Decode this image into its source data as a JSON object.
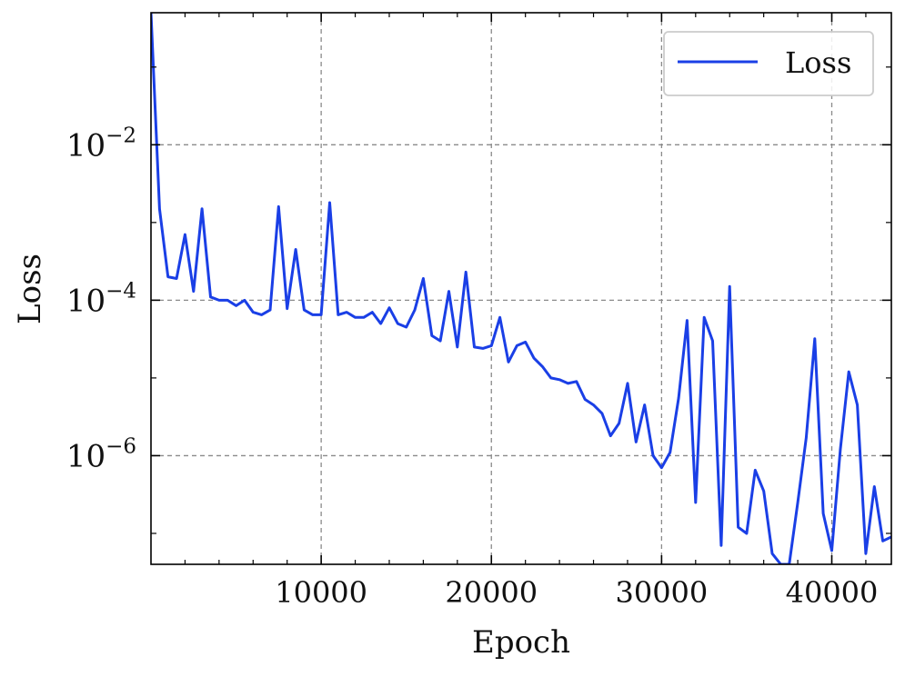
{
  "chart_data": {
    "type": "line",
    "xlabel": "Epoch",
    "ylabel": "Loss",
    "x_scale": "linear",
    "y_scale": "log",
    "xlim": [
      0,
      43500
    ],
    "ylim": [
      4e-08,
      0.5
    ],
    "x_ticks": [
      10000,
      20000,
      30000,
      40000
    ],
    "x_tick_labels": [
      "10000",
      "20000",
      "30000",
      "40000"
    ],
    "y_ticks": [
      0.01,
      0.0001,
      1e-06
    ],
    "y_tick_labels": [
      {
        "base": "10",
        "exp": "−2"
      },
      {
        "base": "10",
        "exp": "−4"
      },
      {
        "base": "10",
        "exp": "−6"
      }
    ],
    "grid": true,
    "legend": {
      "position": "top-right"
    },
    "series": [
      {
        "name": "Loss",
        "color": "#1a3fe6",
        "x": [
          0,
          500,
          1000,
          1500,
          2000,
          2500,
          3000,
          3500,
          4000,
          4500,
          5000,
          5500,
          6000,
          6500,
          7000,
          7500,
          8000,
          8500,
          9000,
          9500,
          10000,
          10500,
          11000,
          11500,
          12000,
          12500,
          13000,
          13500,
          14000,
          14500,
          15000,
          15500,
          16000,
          16500,
          17000,
          17500,
          18000,
          18500,
          19000,
          19500,
          20000,
          20500,
          21000,
          21500,
          22000,
          22500,
          23000,
          23500,
          24000,
          24500,
          25000,
          25500,
          26000,
          26500,
          27000,
          27500,
          28000,
          28500,
          29000,
          29500,
          30000,
          30500,
          31000,
          31500,
          32000,
          32500,
          33000,
          33500,
          34000,
          34500,
          35000,
          35500,
          36000,
          36500,
          37000,
          37500,
          38000,
          38500,
          39000,
          39500,
          40000,
          40500,
          41000,
          41500,
          42000,
          42500,
          43000,
          43500
        ],
        "y": [
          0.5,
          0.0015,
          0.0002,
          0.00019,
          0.0007,
          0.00013,
          0.0015,
          0.00011,
          0.0001,
          0.0001,
          8.5e-05,
          0.0001,
          7e-05,
          6.5e-05,
          7.5e-05,
          0.0016,
          7.8e-05,
          0.00045,
          7.5e-05,
          6.5e-05,
          6.5e-05,
          0.0018,
          6.5e-05,
          7e-05,
          6e-05,
          6e-05,
          7e-05,
          5e-05,
          8e-05,
          5e-05,
          4.5e-05,
          7.5e-05,
          0.00019,
          3.5e-05,
          3e-05,
          0.00013,
          2.5e-05,
          0.00023,
          2.5e-05,
          2.4e-05,
          2.6e-05,
          6e-05,
          1.6e-05,
          2.6e-05,
          2.9e-05,
          1.8e-05,
          1.4e-05,
          1e-05,
          9.5e-06,
          8.5e-06,
          9e-06,
          5.3e-06,
          4.5e-06,
          3.5e-06,
          1.8e-06,
          2.6e-06,
          8.5e-06,
          1.5e-06,
          4.5e-06,
          1e-06,
          7e-07,
          1.1e-06,
          5.5e-06,
          5.5e-05,
          2.5e-07,
          6e-05,
          3e-05,
          7e-08,
          0.00015,
          1.2e-07,
          1e-07,
          6.5e-07,
          3.5e-07,
          5.5e-08,
          4e-08,
          4e-08,
          2.5e-07,
          1.7e-06,
          3.2e-05,
          1.8e-07,
          6e-08,
          1.2e-06,
          1.2e-05,
          4.5e-06,
          5.5e-08,
          4e-07,
          8e-08,
          9e-08
        ]
      }
    ]
  }
}
